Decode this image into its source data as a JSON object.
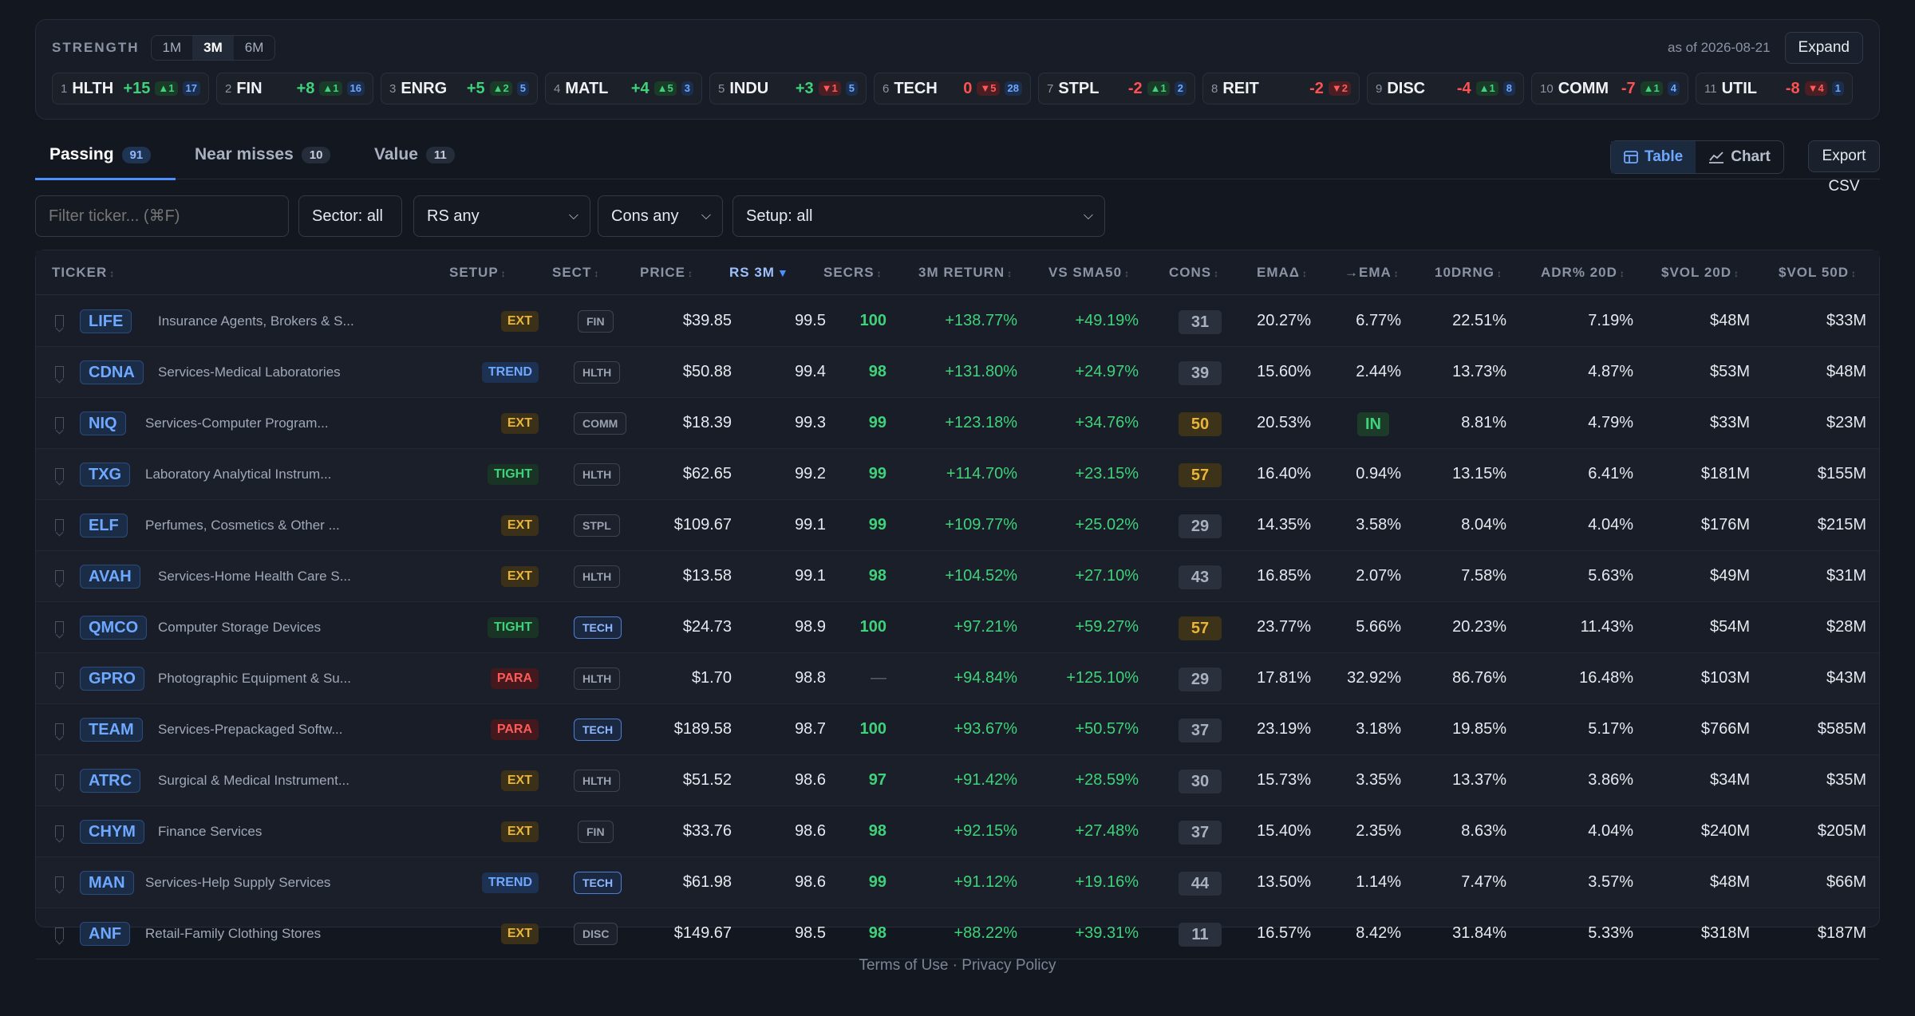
{
  "strength": {
    "label": "STRENGTH",
    "periods": [
      "1M",
      "3M",
      "6M"
    ],
    "active_period": "3M",
    "as_of": "as of 2026-08-21",
    "expand_label": "Expand",
    "sectors": [
      {
        "rank": "1",
        "name": "HLTH",
        "delta": "+15",
        "up": "▲1",
        "count": "17",
        "trend": "pos"
      },
      {
        "rank": "2",
        "name": "FIN",
        "delta": "+8",
        "up": "▲1",
        "count": "16",
        "trend": "pos"
      },
      {
        "rank": "3",
        "name": "ENRG",
        "delta": "+5",
        "up": "▲2",
        "count": "5",
        "trend": "pos"
      },
      {
        "rank": "4",
        "name": "MATL",
        "delta": "+4",
        "up": "▲5",
        "count": "3",
        "trend": "pos"
      },
      {
        "rank": "5",
        "name": "INDU",
        "delta": "+3",
        "up": "▼1",
        "count": "5",
        "trend": "pos"
      },
      {
        "rank": "6",
        "name": "TECH",
        "delta": "0",
        "up": "▼5",
        "count": "28",
        "trend": "zero"
      },
      {
        "rank": "7",
        "name": "STPL",
        "delta": "-2",
        "up": "▲1",
        "count": "2",
        "trend": "neg"
      },
      {
        "rank": "8",
        "name": "REIT",
        "delta": "-2",
        "up": "▼2",
        "count": "",
        "trend": "neg"
      },
      {
        "rank": "9",
        "name": "DISC",
        "delta": "-4",
        "up": "▲1",
        "count": "8",
        "trend": "neg"
      },
      {
        "rank": "10",
        "name": "COMM",
        "delta": "-7",
        "up": "▲1",
        "count": "4",
        "trend": "neg"
      },
      {
        "rank": "11",
        "name": "UTIL",
        "delta": "-8",
        "up": "▼4",
        "count": "1",
        "trend": "neg"
      }
    ]
  },
  "tabs": [
    {
      "label": "Passing",
      "count": "91"
    },
    {
      "label": "Near misses",
      "count": "10"
    },
    {
      "label": "Value",
      "count": "11"
    }
  ],
  "view": {
    "table_label": "Table",
    "chart_label": "Chart",
    "export_label": "Export CSV"
  },
  "filters": {
    "ticker_placeholder": "Filter ticker... (⌘F)",
    "sector": "Sector: all",
    "rs": "RS any",
    "cons": "Cons any",
    "setup": "Setup: all"
  },
  "columns": [
    "TICKER",
    "SETUP",
    "SECT",
    "PRICE",
    "RS 3M",
    "SECRS",
    "3M RETURN",
    "VS SMA50",
    "CONS",
    "EMAΔ",
    "→EMA",
    "10DRNG",
    "ADR% 20D",
    "$VOL 20D",
    "$VOL 50D"
  ],
  "rows": [
    {
      "ticker": "LIFE",
      "name": "Insurance Agents, Brokers & S...",
      "setup": "EXT",
      "sect": "FIN",
      "price": "$39.85",
      "rs": "99.5",
      "secrs": "100",
      "ret": "+138.77%",
      "sma": "+49.19%",
      "cons": "31",
      "ema_d": "20.27%",
      "to_ema": "6.77%",
      "rng": "22.51%",
      "adr": "7.19%",
      "vol20": "$48M",
      "vol50": "$33M"
    },
    {
      "ticker": "CDNA",
      "name": "Services-Medical Laboratories",
      "setup": "TREND",
      "sect": "HLTH",
      "price": "$50.88",
      "rs": "99.4",
      "secrs": "98",
      "ret": "+131.80%",
      "sma": "+24.97%",
      "cons": "39",
      "ema_d": "15.60%",
      "to_ema": "2.44%",
      "rng": "13.73%",
      "adr": "4.87%",
      "vol20": "$53M",
      "vol50": "$48M"
    },
    {
      "ticker": "NIQ",
      "name": "Services-Computer Program...",
      "setup": "EXT",
      "sect": "COMM",
      "price": "$18.39",
      "rs": "99.3",
      "secrs": "99",
      "ret": "+123.18%",
      "sma": "+34.76%",
      "cons": "50",
      "ema_d": "20.53%",
      "to_ema": "IN",
      "rng": "8.81%",
      "adr": "4.79%",
      "vol20": "$33M",
      "vol50": "$23M"
    },
    {
      "ticker": "TXG",
      "name": "Laboratory Analytical Instrum...",
      "setup": "TIGHT",
      "sect": "HLTH",
      "price": "$62.65",
      "rs": "99.2",
      "secrs": "99",
      "ret": "+114.70%",
      "sma": "+23.15%",
      "cons": "57",
      "ema_d": "16.40%",
      "to_ema": "0.94%",
      "rng": "13.15%",
      "adr": "6.41%",
      "vol20": "$181M",
      "vol50": "$155M"
    },
    {
      "ticker": "ELF",
      "name": "Perfumes, Cosmetics & Other ...",
      "setup": "EXT",
      "sect": "STPL",
      "price": "$109.67",
      "rs": "99.1",
      "secrs": "99",
      "ret": "+109.77%",
      "sma": "+25.02%",
      "cons": "29",
      "ema_d": "14.35%",
      "to_ema": "3.58%",
      "rng": "8.04%",
      "adr": "4.04%",
      "vol20": "$176M",
      "vol50": "$215M"
    },
    {
      "ticker": "AVAH",
      "name": "Services-Home Health Care S...",
      "setup": "EXT",
      "sect": "HLTH",
      "price": "$13.58",
      "rs": "99.1",
      "secrs": "98",
      "ret": "+104.52%",
      "sma": "+27.10%",
      "cons": "43",
      "ema_d": "16.85%",
      "to_ema": "2.07%",
      "rng": "7.58%",
      "adr": "5.63%",
      "vol20": "$49M",
      "vol50": "$31M"
    },
    {
      "ticker": "QMCO",
      "name": "Computer Storage Devices",
      "setup": "TIGHT",
      "sect": "TECH",
      "price": "$24.73",
      "rs": "98.9",
      "secrs": "100",
      "ret": "+97.21%",
      "sma": "+59.27%",
      "cons": "57",
      "ema_d": "23.77%",
      "to_ema": "5.66%",
      "rng": "20.23%",
      "adr": "11.43%",
      "vol20": "$54M",
      "vol50": "$28M"
    },
    {
      "ticker": "GPRO",
      "name": "Photographic Equipment & Su...",
      "setup": "PARA",
      "sect": "HLTH",
      "price": "$1.70",
      "rs": "98.8",
      "secrs": "—",
      "ret": "+94.84%",
      "sma": "+125.10%",
      "cons": "29",
      "ema_d": "17.81%",
      "to_ema": "32.92%",
      "rng": "86.76%",
      "adr": "16.48%",
      "vol20": "$103M",
      "vol50": "$43M"
    },
    {
      "ticker": "TEAM",
      "name": "Services-Prepackaged Softw...",
      "setup": "PARA",
      "sect": "TECH",
      "price": "$189.58",
      "rs": "98.7",
      "secrs": "100",
      "ret": "+93.67%",
      "sma": "+50.57%",
      "cons": "37",
      "ema_d": "23.19%",
      "to_ema": "3.18%",
      "rng": "19.85%",
      "adr": "5.17%",
      "vol20": "$766M",
      "vol50": "$585M"
    },
    {
      "ticker": "ATRC",
      "name": "Surgical & Medical Instrument...",
      "setup": "EXT",
      "sect": "HLTH",
      "price": "$51.52",
      "rs": "98.6",
      "secrs": "97",
      "ret": "+91.42%",
      "sma": "+28.59%",
      "cons": "30",
      "ema_d": "15.73%",
      "to_ema": "3.35%",
      "rng": "13.37%",
      "adr": "3.86%",
      "vol20": "$34M",
      "vol50": "$35M"
    },
    {
      "ticker": "CHYM",
      "name": "Finance Services",
      "setup": "EXT",
      "sect": "FIN",
      "price": "$33.76",
      "rs": "98.6",
      "secrs": "98",
      "ret": "+92.15%",
      "sma": "+27.48%",
      "cons": "37",
      "ema_d": "15.40%",
      "to_ema": "2.35%",
      "rng": "8.63%",
      "adr": "4.04%",
      "vol20": "$240M",
      "vol50": "$205M"
    },
    {
      "ticker": "MAN",
      "name": "Services-Help Supply Services",
      "setup": "TREND",
      "sect": "TECH",
      "price": "$61.98",
      "rs": "98.6",
      "secrs": "99",
      "ret": "+91.12%",
      "sma": "+19.16%",
      "cons": "44",
      "ema_d": "13.50%",
      "to_ema": "1.14%",
      "rng": "7.47%",
      "adr": "3.57%",
      "vol20": "$48M",
      "vol50": "$66M"
    },
    {
      "ticker": "ANF",
      "name": "Retail-Family Clothing Stores",
      "setup": "EXT",
      "sect": "DISC",
      "price": "$149.67",
      "rs": "98.5",
      "secrs": "98",
      "ret": "+88.22%",
      "sma": "+39.31%",
      "cons": "11",
      "ema_d": "16.57%",
      "to_ema": "8.42%",
      "rng": "31.84%",
      "adr": "5.33%",
      "vol20": "$318M",
      "vol50": "$187M"
    }
  ],
  "footer": "Terms of Use · Privacy Policy"
}
